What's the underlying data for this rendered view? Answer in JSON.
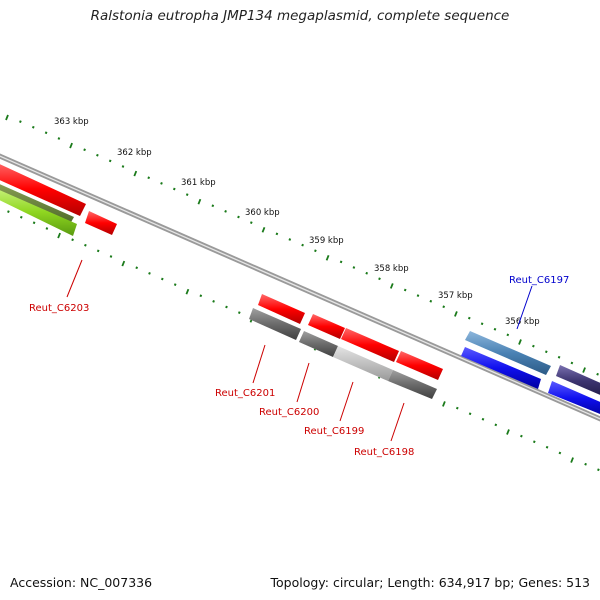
{
  "title": "Ralstonia eutropha JMP134 megaplasmid, complete sequence",
  "footer": {
    "accession": "Accession: NC_007336",
    "topology": "Topology: circular; Length: 634,917 bp; Genes: 513"
  },
  "scale_labels": [
    "363 kbp",
    "362 kbp",
    "361 kbp",
    "360 kbp",
    "359 kbp",
    "358 kbp",
    "357 kbp",
    "356 kbp"
  ],
  "gene_labels": [
    {
      "text": "Reut_C6203",
      "color": "#cc0000"
    },
    {
      "text": "Reut_C6201",
      "color": "#cc0000"
    },
    {
      "text": "Reut_C6200",
      "color": "#cc0000"
    },
    {
      "text": "Reut_C6199",
      "color": "#cc0000"
    },
    {
      "text": "Reut_C6198",
      "color": "#cc0000"
    },
    {
      "text": "Reut_C6197",
      "color": "#0000cc"
    }
  ],
  "colors": {
    "backbone": "#888888",
    "ticks": "#1a7a1a",
    "gene_red": "#ff0000",
    "gene_gray": "#6b6b6b",
    "gene_lightgray": "#bdbdbd",
    "gene_green": "#7fd11a",
    "gene_steelblue": "#4a82b4",
    "gene_blue": "#1010ee",
    "gene_darkpurple": "#3c3470"
  }
}
